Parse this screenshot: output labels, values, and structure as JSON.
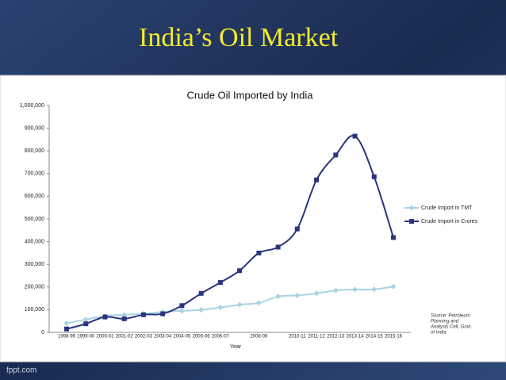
{
  "slide_title": "India’s Oil Market",
  "footer": "fppt.com",
  "chart_data": {
    "type": "line",
    "title": "Crude Oil Imported by India",
    "x_label": "Year",
    "categories": [
      "1998-99",
      "1999-00",
      "2000-01",
      "2001-02",
      "2002-03",
      "2003-04",
      "2004-05",
      "2005-06",
      "2006-07",
      null,
      "2008-09",
      null,
      "2010-11",
      "2011-12",
      "2012-13",
      "2013-14",
      "2014-15",
      "2015-16"
    ],
    "series": [
      {
        "name": "Crude Import in TMT",
        "color": "#a9d3e3",
        "marker": "diamond",
        "values": [
          40000,
          57000,
          72000,
          78000,
          82000,
          90000,
          95000,
          99000,
          110000,
          122000,
          130000,
          158000,
          163000,
          172000,
          185000,
          189000,
          190000,
          202000
        ]
      },
      {
        "name": "Crude Import in Crores",
        "color": "#2b347f",
        "marker": "square",
        "values": [
          15000,
          38000,
          68000,
          60000,
          78000,
          82000,
          118000,
          172000,
          220000,
          272000,
          350000,
          376000,
          456000,
          672000,
          782000,
          865000,
          686000,
          418000
        ]
      }
    ],
    "ylim": [
      0,
      1000000
    ],
    "yticks": [
      0,
      {
        "value": 100000,
        "label": "100,000"
      },
      {
        "value": 200000,
        "label": "200,000"
      },
      {
        "value": 300000,
        "label": "300,000"
      },
      {
        "value": 400000,
        "label": "400,000"
      },
      {
        "value": 500000,
        "label": "500,000"
      },
      {
        "value": 600000,
        "label": "600,000"
      },
      {
        "value": 700000,
        "label": "700,000"
      },
      {
        "value": 800000,
        "label": "800,000"
      },
      {
        "value": 900000,
        "label": "900,000"
      },
      {
        "value": 1000000,
        "label": "1,000,000"
      }
    ],
    "grid": false,
    "legend": "right",
    "source": [
      "Source: Petroleum",
      "Planning and",
      "Analysis Cell, Govt.",
      "of India"
    ]
  }
}
